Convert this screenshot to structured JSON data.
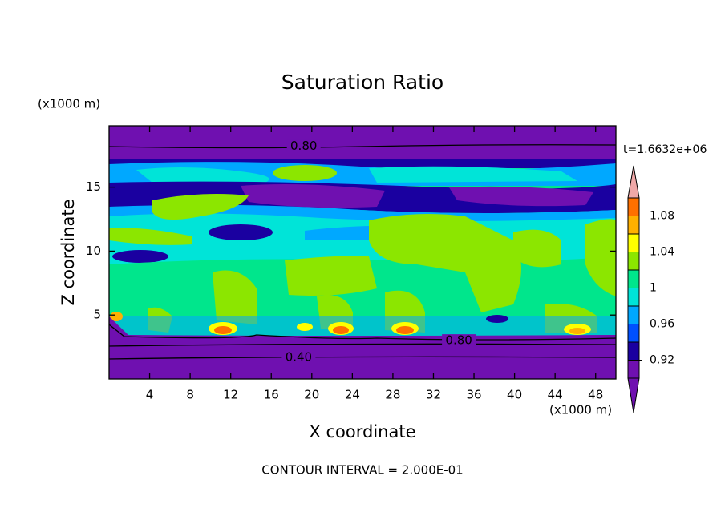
{
  "chart_data": {
    "type": "contour",
    "title": "Saturation Ratio",
    "x_label": "X coordinate",
    "y_label": "Z coordinate",
    "x_unit_label": "(x1000 m)",
    "y_unit_label": "(x1000 m)",
    "time_label": "t=1.6632e+06",
    "footer": "CONTOUR INTERVAL = 2.000E-01",
    "xlim": [
      0,
      50
    ],
    "ylim": [
      0,
      19.8
    ],
    "xticks": [
      4,
      8,
      12,
      16,
      20,
      24,
      28,
      32,
      36,
      40,
      44,
      48
    ],
    "yticks": [
      5,
      10,
      15
    ],
    "contour_labels": [
      {
        "value": 0.8,
        "label": "0.80",
        "x": 17.7,
        "y": 18.2
      },
      {
        "value": 0.8,
        "label": "0.80",
        "x": 33.0,
        "y": 3.0
      },
      {
        "value": 0.4,
        "label": "0.40",
        "x": 17.2,
        "y": 1.7
      }
    ],
    "colorbar": {
      "clim": [
        0.9,
        1.1
      ],
      "ticks": [
        0.92,
        0.96,
        1,
        1.04,
        1.08
      ],
      "colors": [
        "#6f10b0",
        "#1a00a0",
        "#0050ff",
        "#00a8ff",
        "#00e4d8",
        "#00e68c",
        "#8ce600",
        "#ffff00",
        "#ffb000",
        "#ff7000",
        "#ff2020"
      ],
      "over_color": "#f0a8a8",
      "under_color": "#6f10b0"
    }
  }
}
